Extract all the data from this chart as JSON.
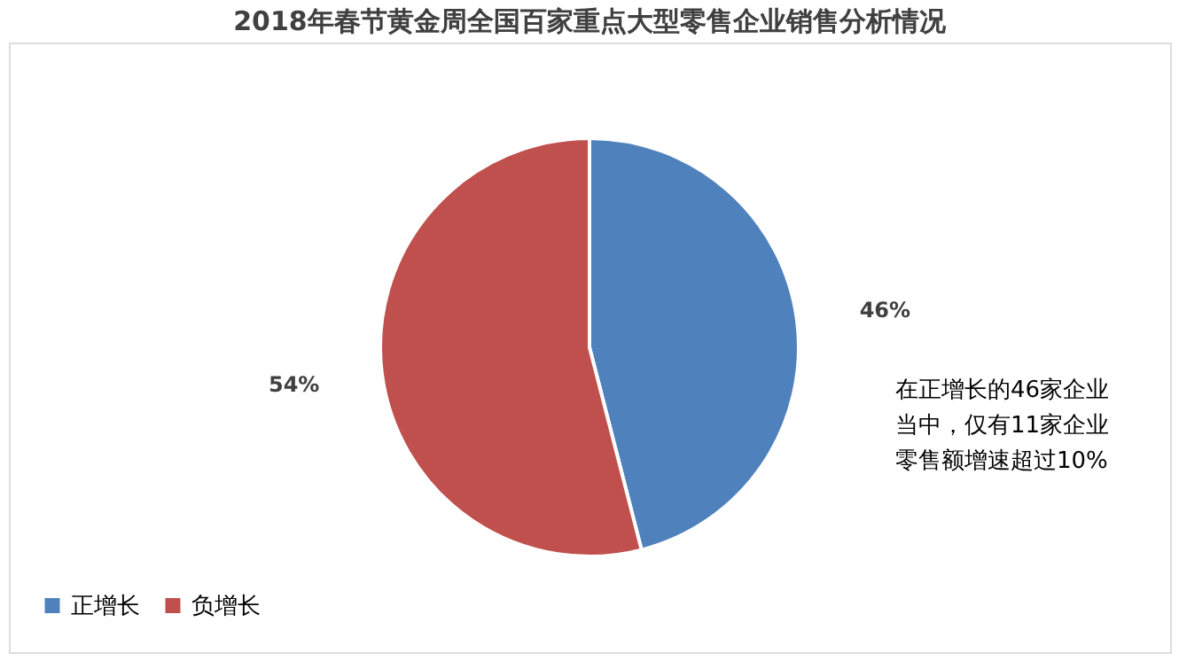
{
  "chart_data": {
    "type": "pie",
    "title": "2018年春节黄金周全国百家重点大型零售企业销售分析情况",
    "categories": [
      "正增长",
      "负增长"
    ],
    "values": [
      46,
      54
    ],
    "colors": [
      "#4f81bd",
      "#c0504d"
    ],
    "value_labels": [
      "46%",
      "54%"
    ],
    "legend": "bottom left",
    "annotations": [
      "在正增长的46家企业",
      "当中，仅有11家企业",
      "零售额增速超过10%"
    ]
  }
}
